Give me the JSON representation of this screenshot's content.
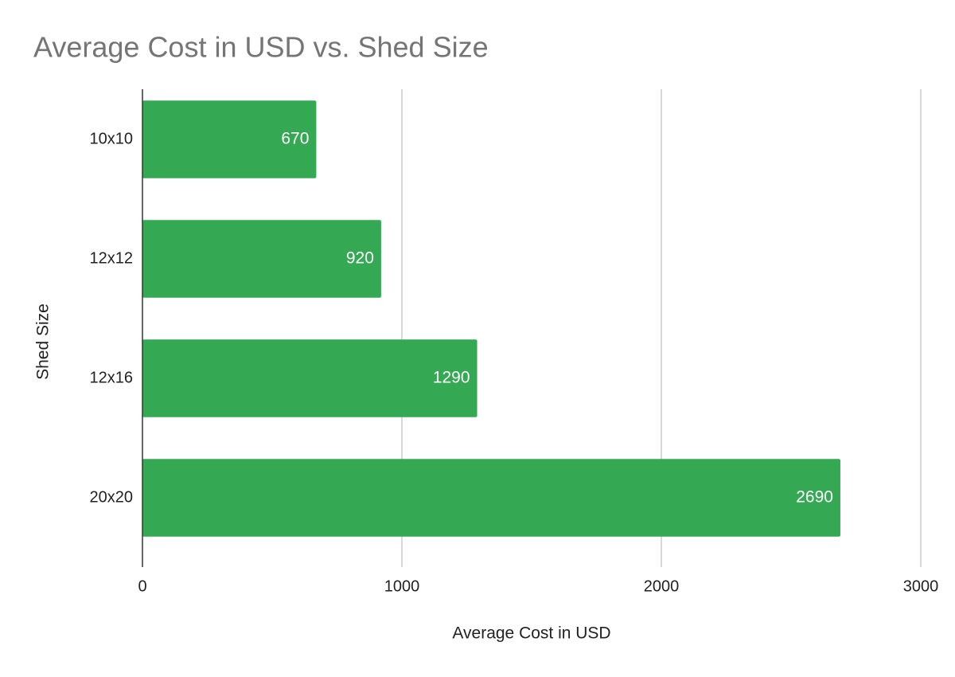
{
  "chart_data": {
    "type": "hbar",
    "title": "Average Cost in USD vs. Shed Size",
    "x_label": "Average Cost in USD",
    "y_label": "Shed Size",
    "categories": [
      "10x10",
      "12x12",
      "12x16",
      "20x20"
    ],
    "values": [
      670,
      920,
      1290,
      2690
    ],
    "color": "#34a853",
    "xlim": [
      0,
      3000
    ],
    "xticks": [
      0,
      1000,
      2000,
      3000
    ],
    "grid": true
  }
}
